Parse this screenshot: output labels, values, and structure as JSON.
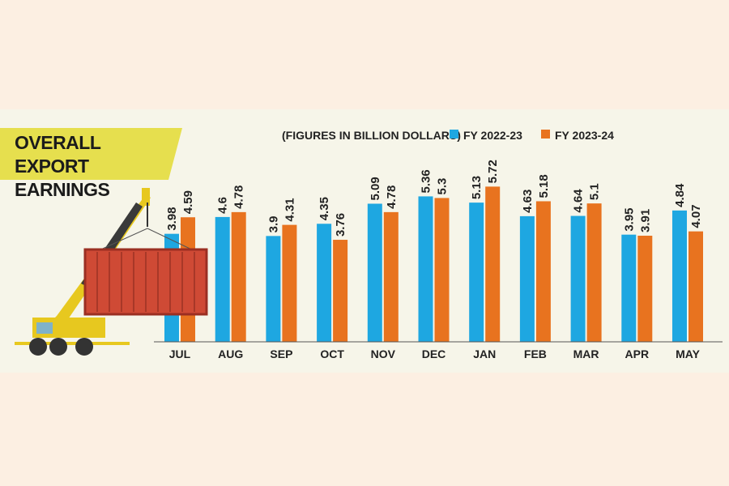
{
  "chart_data": {
    "type": "bar",
    "title": "OVERALL EXPORT EARNINGS",
    "subtitle": "(FIGURES IN BILLION DOLLARS)",
    "categories": [
      "JUL",
      "AUG",
      "SEP",
      "OCT",
      "NOV",
      "DEC",
      "JAN",
      "FEB",
      "MAR",
      "APR",
      "MAY"
    ],
    "series": [
      {
        "name": "FY 2022-23",
        "color": "#1ea7e1",
        "values": [
          3.98,
          4.6,
          3.9,
          4.35,
          5.09,
          5.36,
          5.13,
          4.63,
          4.64,
          3.95,
          4.84
        ]
      },
      {
        "name": "FY 2023-24",
        "color": "#e8731f",
        "values": [
          4.59,
          4.78,
          4.31,
          3.76,
          4.78,
          5.3,
          5.72,
          5.18,
          5.1,
          3.91,
          4.07
        ]
      }
    ]
  }
}
